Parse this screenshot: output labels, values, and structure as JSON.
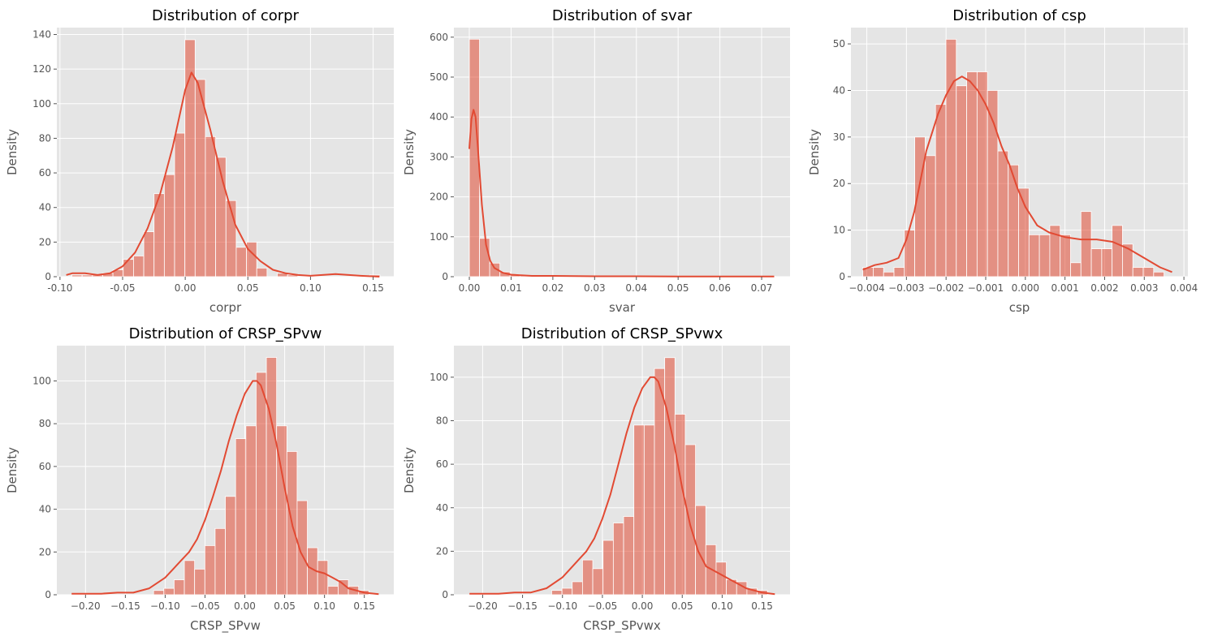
{
  "figure": {
    "background": "#ffffff"
  },
  "style": {
    "panel_bg": "#e5e5e5",
    "grid": "#ffffff",
    "bar_fill": "#e24a33",
    "bar_opacity": 0.55,
    "bar_edge": "#ffffff",
    "kde_color": "#e24a33",
    "text": "#555555",
    "title": "#000000"
  },
  "chart_data": [
    {
      "type": "bar",
      "title": "Distribution of corpr",
      "xlabel": "corpr",
      "ylabel": "Density",
      "xlim": [
        -0.1025,
        0.1665
      ],
      "ylim": [
        0,
        144
      ],
      "xticks": [
        -0.1,
        -0.05,
        0.0,
        0.05,
        0.1,
        0.15
      ],
      "xtick_labels": [
        "-0.10",
        "-0.05",
        "0.00",
        "0.05",
        "0.10",
        "0.15"
      ],
      "yticks": [
        0,
        20,
        40,
        60,
        80,
        100,
        120,
        140
      ],
      "bin_start": -0.0905,
      "bin_width": 0.0082,
      "values": [
        1,
        1,
        1,
        2,
        4,
        10,
        12,
        26,
        48,
        59,
        83,
        137,
        114,
        81,
        69,
        44,
        17,
        20,
        5,
        0,
        2,
        1,
        0,
        0,
        0,
        0,
        0,
        0,
        0,
        1
      ],
      "kde": {
        "x": [
          -0.095,
          -0.09,
          -0.08,
          -0.07,
          -0.06,
          -0.05,
          -0.04,
          -0.03,
          -0.02,
          -0.01,
          0.0,
          0.005,
          0.01,
          0.02,
          0.03,
          0.04,
          0.05,
          0.06,
          0.07,
          0.08,
          0.09,
          0.1,
          0.12,
          0.14,
          0.155
        ],
        "y": [
          1,
          2,
          2,
          1,
          2,
          6,
          14,
          28,
          48,
          75,
          108,
          118,
          112,
          85,
          55,
          30,
          16,
          9,
          4,
          2,
          1,
          0.5,
          1.5,
          0.5,
          0
        ]
      }
    },
    {
      "type": "bar",
      "title": "Distribution of svar",
      "xlabel": "svar",
      "ylabel": "Density",
      "xlim": [
        -0.0037,
        0.0768
      ],
      "ylim": [
        0,
        624
      ],
      "xticks": [
        0.0,
        0.01,
        0.02,
        0.03,
        0.04,
        0.05,
        0.06,
        0.07
      ],
      "xtick_labels": [
        "0.00",
        "0.01",
        "0.02",
        "0.03",
        "0.04",
        "0.05",
        "0.06",
        "0.07"
      ],
      "yticks": [
        0,
        100,
        200,
        300,
        400,
        500,
        600
      ],
      "bin_start": 0.0,
      "bin_width": 0.00244,
      "values": [
        595,
        96,
        34,
        12,
        5,
        3,
        2,
        2,
        2,
        1,
        1,
        1,
        1,
        1,
        1,
        1,
        1,
        1,
        1,
        1,
        1,
        1,
        1,
        1,
        1,
        1,
        1,
        1,
        1,
        1
      ],
      "kde": {
        "x": [
          0.0,
          0.0005,
          0.001,
          0.0015,
          0.002,
          0.003,
          0.004,
          0.005,
          0.006,
          0.008,
          0.01,
          0.015,
          0.02,
          0.03,
          0.04,
          0.05,
          0.06,
          0.073
        ],
        "y": [
          320,
          395,
          418,
          400,
          330,
          180,
          80,
          40,
          22,
          10,
          5,
          2,
          2,
          1,
          1,
          0.5,
          0.5,
          0.5
        ]
      }
    },
    {
      "type": "bar",
      "title": "Distribution of csp",
      "xlabel": "csp",
      "ylabel": "Density",
      "xlim": [
        -0.0044,
        0.0041
      ],
      "ylim": [
        0,
        53.5
      ],
      "xticks": [
        -0.004,
        -0.003,
        -0.002,
        -0.001,
        0.0,
        0.001,
        0.002,
        0.003,
        0.004
      ],
      "xtick_labels": [
        "−0.004",
        "−0.003",
        "−0.002",
        "−0.001",
        "0.000",
        "0.001",
        "0.002",
        "0.003",
        "0.004"
      ],
      "yticks": [
        0,
        10,
        20,
        30,
        40,
        50
      ],
      "bin_start": -0.0041,
      "bin_width": 0.000262,
      "values": [
        2,
        2,
        1,
        2,
        10,
        30,
        26,
        37,
        51,
        41,
        44,
        44,
        40,
        27,
        24,
        19,
        9,
        9,
        11,
        9,
        3,
        14,
        6,
        6,
        11,
        7,
        2,
        2,
        1,
        0
      ],
      "kde": {
        "x": [
          -0.0041,
          -0.0038,
          -0.0035,
          -0.0032,
          -0.003,
          -0.0028,
          -0.0025,
          -0.0022,
          -0.002,
          -0.0018,
          -0.0016,
          -0.0014,
          -0.0012,
          -0.001,
          -0.0008,
          -0.0006,
          -0.0004,
          -0.0002,
          0.0,
          0.0003,
          0.0006,
          0.001,
          0.0014,
          0.0018,
          0.0022,
          0.0026,
          0.003,
          0.0034,
          0.0037
        ],
        "y": [
          1.5,
          2.5,
          3,
          4,
          8,
          14,
          27,
          35,
          39,
          42,
          43,
          42,
          40,
          37,
          33,
          28,
          24,
          19,
          15,
          11,
          9.5,
          8.5,
          8,
          8,
          7.5,
          6,
          4,
          2,
          1
        ]
      }
    },
    {
      "type": "bar",
      "title": "Distribution of CRSP_SPvw",
      "xlabel": "CRSP_SPvw",
      "ylabel": "Density",
      "xlim": [
        -0.236,
        0.187
      ],
      "ylim": [
        0,
        116.5
      ],
      "xticks": [
        -0.2,
        -0.15,
        -0.1,
        -0.05,
        0.0,
        0.05,
        0.1,
        0.15
      ],
      "xtick_labels": [
        "−0.20",
        "−0.15",
        "−0.10",
        "−0.05",
        "0.00",
        "0.05",
        "0.10",
        "0.15"
      ],
      "yticks": [
        0,
        20,
        40,
        60,
        80,
        100
      ],
      "bin_start": -0.2175,
      "bin_width": 0.01287,
      "values": [
        0,
        0,
        0,
        0,
        0,
        0,
        0,
        0,
        2,
        3,
        7,
        16,
        12,
        23,
        31,
        46,
        73,
        79,
        104,
        111,
        79,
        67,
        44,
        22,
        16,
        4,
        7,
        4,
        2,
        0
      ],
      "kde": {
        "x": [
          -0.2175,
          -0.2,
          -0.18,
          -0.16,
          -0.14,
          -0.12,
          -0.1,
          -0.09,
          -0.08,
          -0.07,
          -0.06,
          -0.05,
          -0.04,
          -0.03,
          -0.02,
          -0.01,
          0.0,
          0.01,
          0.015,
          0.02,
          0.03,
          0.04,
          0.05,
          0.06,
          0.07,
          0.08,
          0.09,
          0.1,
          0.11,
          0.12,
          0.13,
          0.15,
          0.168
        ],
        "y": [
          0.5,
          0.5,
          0.5,
          1,
          1,
          3,
          8,
          12,
          16,
          20,
          26,
          35,
          46,
          58,
          72,
          84,
          94,
          100,
          100,
          98,
          87,
          70,
          50,
          32,
          20,
          13,
          11,
          10,
          8,
          6,
          3,
          1,
          0.3
        ]
      }
    },
    {
      "type": "bar",
      "title": "Distribution of CRSP_SPvwx",
      "xlabel": "CRSP_SPvwx",
      "ylabel": "Density",
      "xlim": [
        -0.236,
        0.185
      ],
      "ylim": [
        0,
        114.5
      ],
      "xticks": [
        -0.2,
        -0.15,
        -0.1,
        -0.05,
        0.0,
        0.05,
        0.1,
        0.15
      ],
      "xtick_labels": [
        "−0.20",
        "−0.15",
        "−0.10",
        "−0.05",
        "0.00",
        "0.05",
        "0.10",
        "0.15"
      ],
      "yticks": [
        0,
        20,
        40,
        60,
        80,
        100
      ],
      "bin_start": -0.2165,
      "bin_width": 0.01287,
      "values": [
        0,
        0,
        0,
        0,
        0,
        0,
        0,
        0,
        2,
        3,
        6,
        16,
        12,
        25,
        33,
        36,
        78,
        78,
        104,
        109,
        83,
        69,
        41,
        23,
        15,
        7,
        6,
        3,
        2,
        0
      ],
      "kde": {
        "x": [
          -0.2165,
          -0.2,
          -0.18,
          -0.16,
          -0.14,
          -0.12,
          -0.1,
          -0.09,
          -0.08,
          -0.07,
          -0.06,
          -0.05,
          -0.04,
          -0.03,
          -0.02,
          -0.01,
          0.0,
          0.01,
          0.015,
          0.02,
          0.03,
          0.04,
          0.05,
          0.06,
          0.07,
          0.08,
          0.09,
          0.1,
          0.11,
          0.12,
          0.13,
          0.15,
          0.166
        ],
        "y": [
          0.5,
          0.5,
          0.5,
          1,
          1,
          3,
          8,
          12,
          16,
          20,
          26,
          35,
          46,
          60,
          74,
          86,
          95,
          100,
          100,
          98,
          86,
          69,
          49,
          32,
          20,
          13,
          11,
          9,
          7,
          5,
          3,
          1,
          0.3
        ]
      }
    }
  ]
}
